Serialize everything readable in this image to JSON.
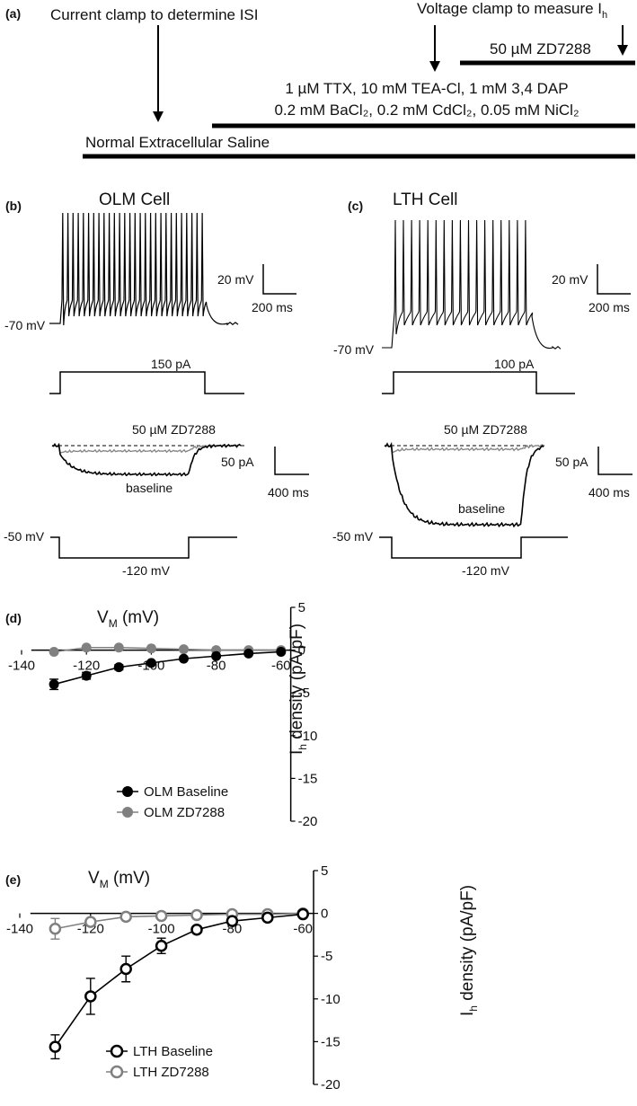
{
  "panel_a": {
    "panel_label": "(a)",
    "current_clamp_label": "Current clamp to determine ISI",
    "voltage_clamp_label": "Voltage clamp to measure I",
    "voltage_clamp_sub": "h",
    "zd_label": "50 µM ZD7288",
    "blockers_line1": "1 µM TTX, 10 mM TEA-Cl, 1 mM 3,4 DAP",
    "blockers_line2": "0.2 mM BaCl₂, 0.2 mM CdCl₂, 0.05 mM NiCl₂",
    "saline_label": "Normal Extracellular Saline"
  },
  "panel_b": {
    "panel_label": "(b)",
    "title": "OLM Cell",
    "rest_label": "-70 mV",
    "current_label": "150 pA",
    "scale_v": "20 mV",
    "scale_t1": "200 ms",
    "zd_trace_label": "50 µM ZD7288",
    "baseline_label": "baseline",
    "scale_i": "50 pA",
    "scale_t2": "400 ms",
    "hold_label": "-50 mV",
    "step_label": "-120 mV"
  },
  "panel_c": {
    "panel_label": "(c)",
    "title": "LTH Cell",
    "rest_label": "-70 mV",
    "current_label": "100 pA",
    "scale_v": "20 mV",
    "scale_t1": "200 ms",
    "zd_trace_label": "50 µM ZD7288",
    "baseline_label": "baseline",
    "scale_i": "50 pA",
    "scale_t2": "400 ms",
    "hold_label": "-50 mV",
    "step_label": "-120 mV"
  },
  "chart_data": [
    {
      "type": "line",
      "panel_label": "(d)",
      "xlabel": "V",
      "xlabel_sub": "M",
      "xlabel_unit": " (mV)",
      "ylabel_pre": "I",
      "ylabel_sub": "h",
      "ylabel_post": " density (pA/pF)",
      "xlim": [
        -140,
        -55
      ],
      "ylim": [
        -20,
        5
      ],
      "x_ticks": [
        "-140",
        "-120",
        "-100",
        "-80",
        "-60"
      ],
      "y_ticks": [
        "5",
        "0",
        "-5",
        "-10",
        "-15",
        "-20"
      ],
      "legend": "bottom-left",
      "series": [
        {
          "name": "OLM Baseline",
          "color": "#000000",
          "filled": true,
          "x": [
            -130,
            -120,
            -110,
            -100,
            -90,
            -80,
            -70,
            -60
          ],
          "y": [
            -4.0,
            -3.0,
            -2.0,
            -1.5,
            -1.0,
            -0.7,
            -0.4,
            -0.2
          ],
          "err": [
            0.6,
            0.4,
            0.3,
            0.2,
            0.2,
            0.1,
            0.1,
            0.1
          ]
        },
        {
          "name": "OLM ZD7288",
          "color": "#808080",
          "filled": true,
          "x": [
            -130,
            -120,
            -110,
            -100,
            -90,
            -80,
            -70,
            -60
          ],
          "y": [
            -0.2,
            0.3,
            0.3,
            0.2,
            0.1,
            0.0,
            0.0,
            0.0
          ],
          "err": [
            0.1,
            0.1,
            0.1,
            0.1,
            0.1,
            0.1,
            0.1,
            0.1
          ]
        }
      ]
    },
    {
      "type": "line",
      "panel_label": "(e)",
      "xlabel": "V",
      "xlabel_sub": "M",
      "xlabel_unit": " (mV)",
      "ylabel_pre": "I",
      "ylabel_sub": "h",
      "ylabel_post": " density (pA/pF)",
      "xlim": [
        -140,
        -55
      ],
      "ylim": [
        -20,
        5
      ],
      "x_ticks": [
        "-140",
        "-120",
        "-100",
        "-80",
        "-60"
      ],
      "y_ticks": [
        "5",
        "0",
        "-5",
        "-10",
        "-15",
        "-20"
      ],
      "legend": "bottom-left",
      "series": [
        {
          "name": "LTH Baseline",
          "color": "#000000",
          "filled": false,
          "x": [
            -130,
            -120,
            -110,
            -100,
            -90,
            -80,
            -70,
            -60
          ],
          "y": [
            -15.6,
            -9.7,
            -6.5,
            -3.8,
            -1.9,
            -0.9,
            -0.5,
            -0.1
          ],
          "err": [
            1.4,
            2.1,
            1.5,
            0.9,
            0.3,
            0.2,
            0.1,
            0.1
          ]
        },
        {
          "name": "LTH ZD7288",
          "color": "#808080",
          "filled": false,
          "x": [
            -130,
            -120,
            -110,
            -100,
            -90,
            -80,
            -70,
            -60
          ],
          "y": [
            -1.8,
            -1.0,
            -0.4,
            -0.3,
            -0.2,
            -0.1,
            -0.1,
            0.0
          ],
          "err": [
            1.2,
            0.4,
            0.2,
            0.1,
            0.1,
            0.1,
            0.1,
            0.1
          ]
        }
      ]
    }
  ]
}
